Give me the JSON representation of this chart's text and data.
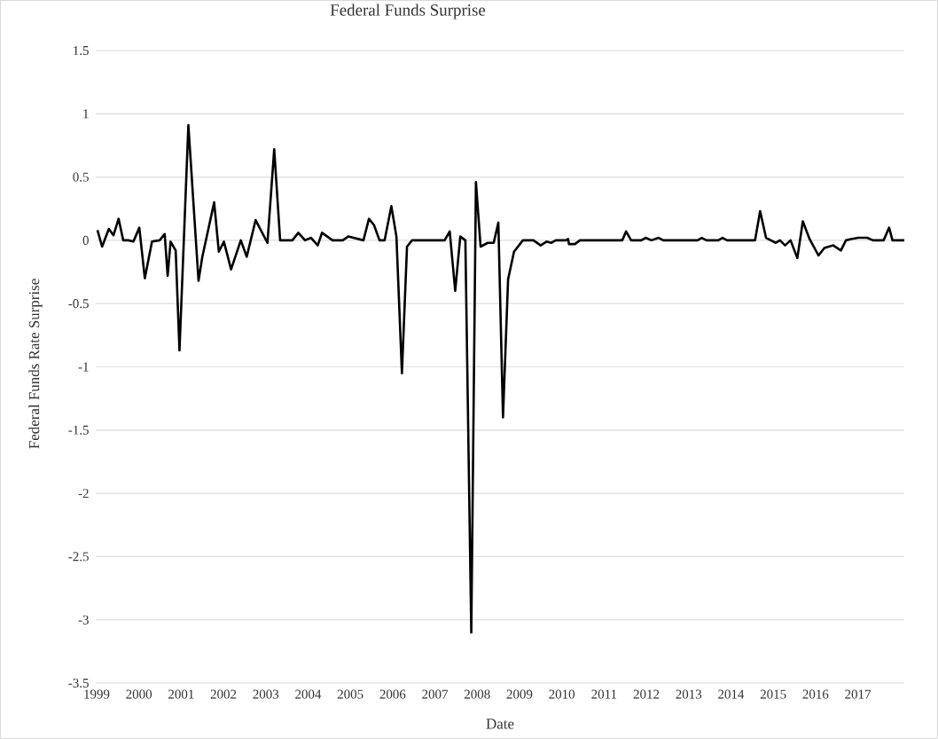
{
  "chart_data": {
    "type": "line",
    "title": "Federal Funds Surprise",
    "xlabel": "Date",
    "ylabel": "Federal Funds Rate Surprise",
    "x": [
      1999.02,
      1999.13,
      1999.29,
      1999.4,
      1999.52,
      1999.63,
      1999.75,
      1999.87,
      2000.01,
      2000.14,
      2000.31,
      2000.49,
      2000.61,
      2000.68,
      2000.75,
      2000.87,
      2000.96,
      2001.17,
      2001.41,
      2001.5,
      2001.78,
      2001.89,
      2002.01,
      2002.18,
      2002.41,
      2002.55,
      2002.76,
      2003.04,
      2003.2,
      2003.34,
      2003.63,
      2003.77,
      2003.93,
      2004.07,
      2004.23,
      2004.33,
      2004.58,
      2004.82,
      2004.95,
      2005.31,
      2005.44,
      2005.56,
      2005.69,
      2005.81,
      2005.97,
      2006.09,
      2006.22,
      2006.34,
      2006.46,
      2007.23,
      2007.35,
      2007.48,
      2007.6,
      2007.72,
      2007.86,
      2007.97,
      2008.08,
      2008.25,
      2008.39,
      2008.5,
      2008.61,
      2008.73,
      2008.87,
      2009.08,
      2009.33,
      2009.5,
      2009.64,
      2009.75,
      2009.86,
      2010.1,
      2010.15,
      2010.17,
      2010.31,
      2010.43,
      2011.43,
      2011.52,
      2011.64,
      2011.88,
      2011.98,
      2012.12,
      2012.29,
      2012.4,
      2013.21,
      2013.31,
      2013.42,
      2013.7,
      2013.8,
      2013.91,
      2014.57,
      2014.69,
      2014.83,
      2015.06,
      2015.16,
      2015.28,
      2015.41,
      2015.57,
      2015.7,
      2015.86,
      2016.07,
      2016.21,
      2016.42,
      2016.6,
      2016.72,
      2016.84,
      2017.01,
      2017.22,
      2017.36,
      2017.61,
      2017.74,
      2017.82,
      2018.1
    ],
    "values": [
      0.08,
      -0.05,
      0.09,
      0.04,
      0.17,
      0.0,
      0.0,
      -0.01,
      0.1,
      -0.3,
      -0.01,
      0.0,
      0.05,
      -0.28,
      -0.01,
      -0.08,
      -0.87,
      0.91,
      -0.32,
      -0.13,
      0.3,
      -0.09,
      -0.01,
      -0.23,
      0.0,
      -0.13,
      0.16,
      -0.02,
      0.72,
      0.0,
      0.0,
      0.06,
      0.0,
      0.02,
      -0.04,
      0.06,
      0.0,
      0.0,
      0.03,
      0.0,
      0.17,
      0.12,
      0.0,
      0.0,
      0.27,
      0.03,
      -1.05,
      -0.05,
      0.0,
      0.0,
      0.07,
      -0.4,
      0.03,
      0.0,
      -3.1,
      0.46,
      -0.05,
      -0.02,
      -0.02,
      0.14,
      -1.4,
      -0.31,
      -0.09,
      0.0,
      0.0,
      -0.04,
      -0.01,
      -0.02,
      0.0,
      0.0,
      0.01,
      -0.03,
      -0.03,
      0.0,
      0.0,
      0.07,
      0.0,
      0.0,
      0.02,
      0.0,
      0.02,
      0.0,
      0.0,
      0.02,
      0.0,
      0.0,
      0.02,
      0.0,
      0.0,
      0.23,
      0.02,
      -0.02,
      0.0,
      -0.04,
      0.0,
      -0.14,
      0.15,
      0.01,
      -0.12,
      -0.06,
      -0.04,
      -0.08,
      0.0,
      0.01,
      0.02,
      0.02,
      0.0,
      0.0,
      0.1,
      0.0,
      0.0
    ],
    "color": "#000000",
    "line_style": "solid",
    "grid": "y",
    "xlim": [
      1998.98,
      2018.1
    ],
    "xticks": [
      1999,
      2000,
      2001,
      2002,
      2003,
      2004,
      2005,
      2006,
      2007,
      2008,
      2009,
      2010,
      2011,
      2012,
      2013,
      2014,
      2015,
      2016,
      2017
    ],
    "ylim": [
      -3.5,
      1.5
    ],
    "yticks": [
      -3.5,
      -3,
      -2.5,
      -2,
      -1.5,
      -1,
      -0.5,
      0,
      0.5,
      1,
      1.5
    ]
  }
}
